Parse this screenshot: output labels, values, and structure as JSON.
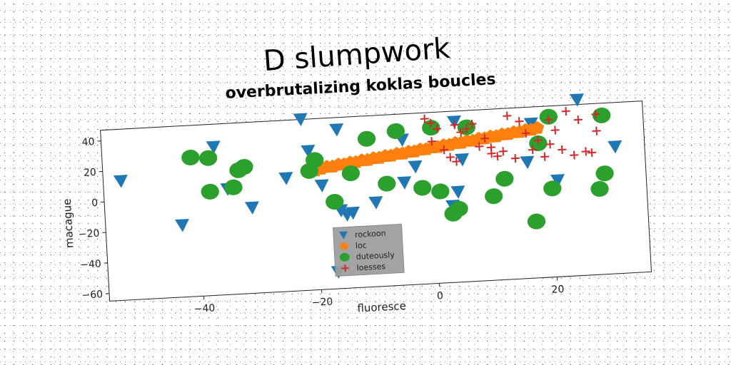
{
  "chart_data": {
    "type": "scatter",
    "title": "D slumpwork",
    "subtitle": "overbrutalizing koklas boucles",
    "xlabel": "fluoresce",
    "ylabel": "macague",
    "xlim": [
      -56,
      36
    ],
    "ylim": [
      -65,
      47
    ],
    "xticks": [
      -40,
      -20,
      0,
      20
    ],
    "yticks": [
      -60,
      -40,
      -20,
      0,
      20,
      40
    ],
    "grid": false,
    "legend_position": "lower-center",
    "series": [
      {
        "name": "rockoon",
        "marker": "triangle-down",
        "color": "#1f77b4",
        "points": [
          [
            -53,
            13
          ],
          [
            -43,
            -18
          ],
          [
            -37,
            32
          ],
          [
            -35,
            4
          ],
          [
            -31,
            -9
          ],
          [
            -25,
            9
          ],
          [
            -22,
            47
          ],
          [
            -21,
            26
          ],
          [
            -19,
            3
          ],
          [
            -17,
            -54
          ],
          [
            -16,
            -14
          ],
          [
            -15,
            -17
          ],
          [
            -14,
            -16
          ],
          [
            -16,
            39
          ],
          [
            -10,
            -10
          ],
          [
            -5,
            2
          ],
          [
            -5,
            30
          ],
          [
            -3,
            12
          ],
          [
            3,
            -15
          ],
          [
            4,
            -6
          ],
          [
            4,
            40
          ],
          [
            5,
            15
          ],
          [
            16,
            11
          ],
          [
            17,
            36
          ],
          [
            21,
            -2
          ],
          [
            25,
            50
          ],
          [
            31,
            18
          ]
        ]
      },
      {
        "name": "loc",
        "marker": "pentagon",
        "color": "#ff7f0e",
        "points": [
          [
            -20,
            13
          ],
          [
            -19,
            14
          ],
          [
            -18,
            15
          ],
          [
            -17,
            15
          ],
          [
            -16,
            16
          ],
          [
            -15,
            16
          ],
          [
            -14,
            17
          ],
          [
            -13,
            17
          ],
          [
            -12,
            18
          ],
          [
            -11,
            18
          ],
          [
            -10,
            19
          ],
          [
            -9,
            19
          ],
          [
            -8,
            20
          ],
          [
            -7,
            20
          ],
          [
            -6,
            21
          ],
          [
            -5,
            21
          ],
          [
            -4,
            22
          ],
          [
            -3,
            22
          ],
          [
            -2,
            23
          ],
          [
            -1,
            23
          ],
          [
            0,
            24
          ],
          [
            1,
            24
          ],
          [
            2,
            25
          ],
          [
            3,
            25
          ],
          [
            4,
            26
          ],
          [
            5,
            26
          ],
          [
            6,
            27
          ],
          [
            7,
            27
          ],
          [
            8,
            28
          ],
          [
            9,
            28
          ],
          [
            10,
            29
          ],
          [
            11,
            29
          ],
          [
            12,
            30
          ],
          [
            13,
            30
          ],
          [
            14,
            31
          ],
          [
            15,
            31
          ],
          [
            16,
            32
          ],
          [
            17,
            32
          ],
          [
            18,
            33
          ]
        ]
      },
      {
        "name": "duteously",
        "marker": "circle",
        "color": "#2ca02c",
        "points": [
          [
            -41,
            26
          ],
          [
            -38,
            25
          ],
          [
            -33,
            16
          ],
          [
            -32,
            18
          ],
          [
            -38,
            3
          ],
          [
            -34,
            5
          ],
          [
            -21,
            13
          ],
          [
            -20,
            20
          ],
          [
            -17,
            -8
          ],
          [
            -14,
            10
          ],
          [
            -11,
            32
          ],
          [
            -8,
            2
          ],
          [
            -6,
            36
          ],
          [
            -2,
            -2
          ],
          [
            0,
            37
          ],
          [
            1,
            -5
          ],
          [
            3,
            -20
          ],
          [
            4,
            -17
          ],
          [
            6,
            36
          ],
          [
            10,
            -10
          ],
          [
            12,
            1
          ],
          [
            17,
            -28
          ],
          [
            18,
            23
          ],
          [
            20,
            40
          ],
          [
            20,
            -7
          ],
          [
            28,
            -9
          ],
          [
            29,
            1
          ],
          [
            29,
            39
          ]
        ]
      },
      {
        "name": "loesses",
        "marker": "plus",
        "color": "#d62728",
        "points": [
          [
            -1,
            43
          ],
          [
            0,
            40
          ],
          [
            1,
            36
          ],
          [
            0,
            28
          ],
          [
            2,
            22
          ],
          [
            3,
            17
          ],
          [
            4,
            14
          ],
          [
            4,
            38
          ],
          [
            5,
            33
          ],
          [
            6,
            35
          ],
          [
            7,
            38
          ],
          [
            8,
            23
          ],
          [
            9,
            28
          ],
          [
            10,
            18
          ],
          [
            10,
            22
          ],
          [
            11,
            16
          ],
          [
            12,
            19
          ],
          [
            13,
            42
          ],
          [
            14,
            14
          ],
          [
            15,
            38
          ],
          [
            16,
            30
          ],
          [
            17,
            19
          ],
          [
            18,
            25
          ],
          [
            19,
            14
          ],
          [
            20,
            22
          ],
          [
            21,
            31
          ],
          [
            22,
            18
          ],
          [
            23,
            43
          ],
          [
            24,
            14
          ],
          [
            25,
            37
          ],
          [
            26,
            16
          ],
          [
            27,
            15
          ],
          [
            28,
            40
          ],
          [
            28,
            29
          ],
          [
            20,
            38
          ]
        ]
      }
    ]
  }
}
